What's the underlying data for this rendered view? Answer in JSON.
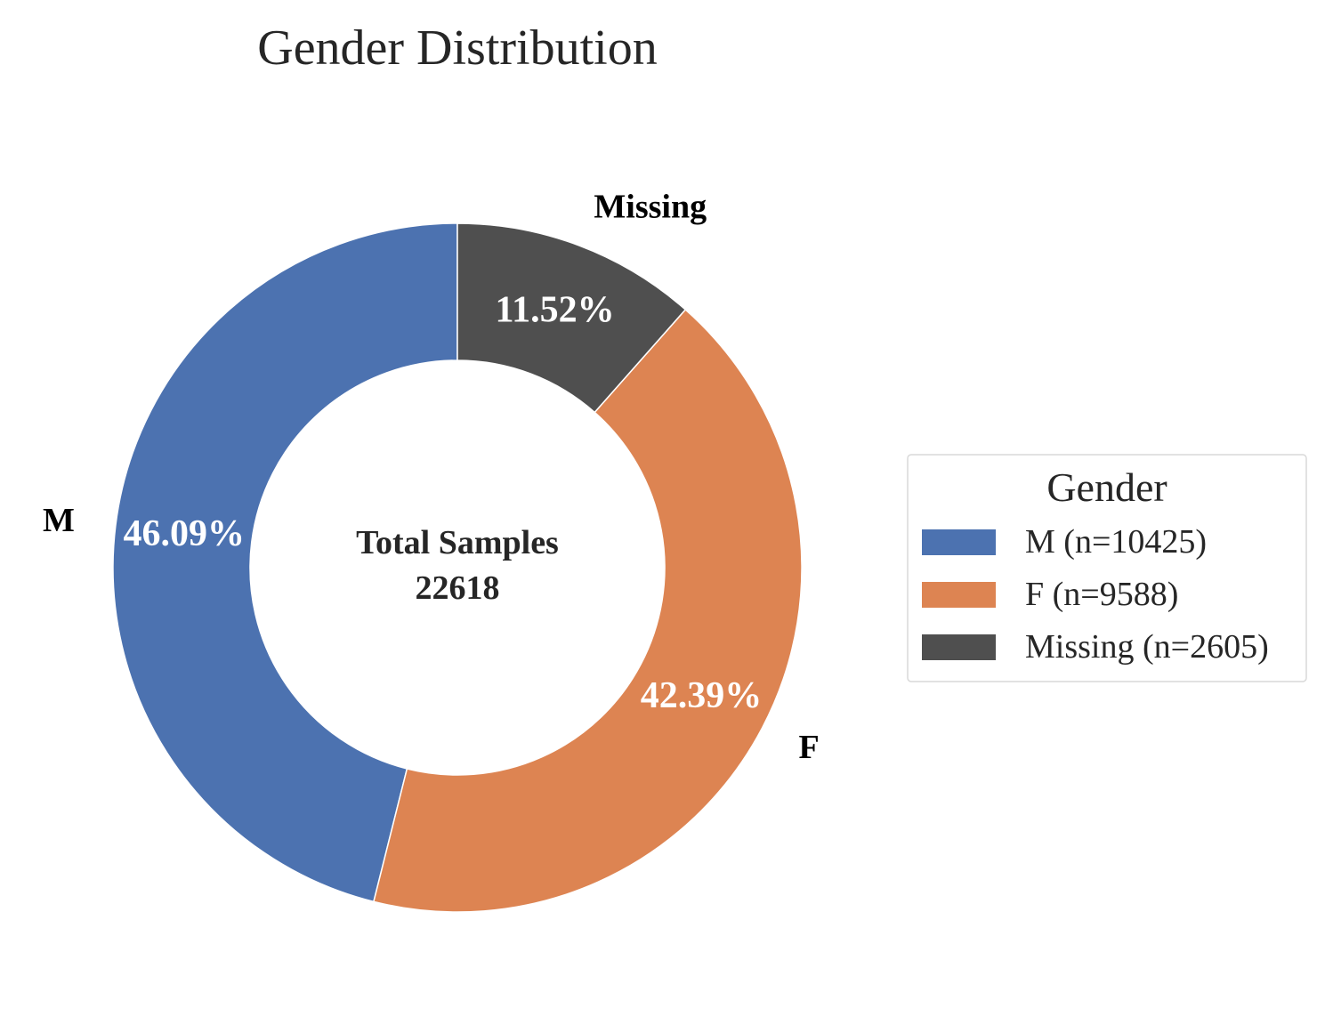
{
  "chart_data": {
    "type": "pie",
    "variant": "donut",
    "title": "Gender Distribution",
    "center_label": "Total Samples",
    "center_value": "22618",
    "categories": [
      "M",
      "F",
      "Missing"
    ],
    "values": [
      10425,
      9588,
      2605
    ],
    "percent_labels": [
      "46.09%",
      "42.39%",
      "11.52%"
    ],
    "colors": [
      "#4C72B0",
      "#DD8452",
      "#4F4F4F"
    ],
    "legend": {
      "title": "Gender",
      "placement": "right",
      "entries": [
        "M (n=10425)",
        "F (n=9588)",
        "Missing (n=2605)"
      ]
    },
    "start_angle_deg": 90,
    "direction": "counterclockwise"
  }
}
